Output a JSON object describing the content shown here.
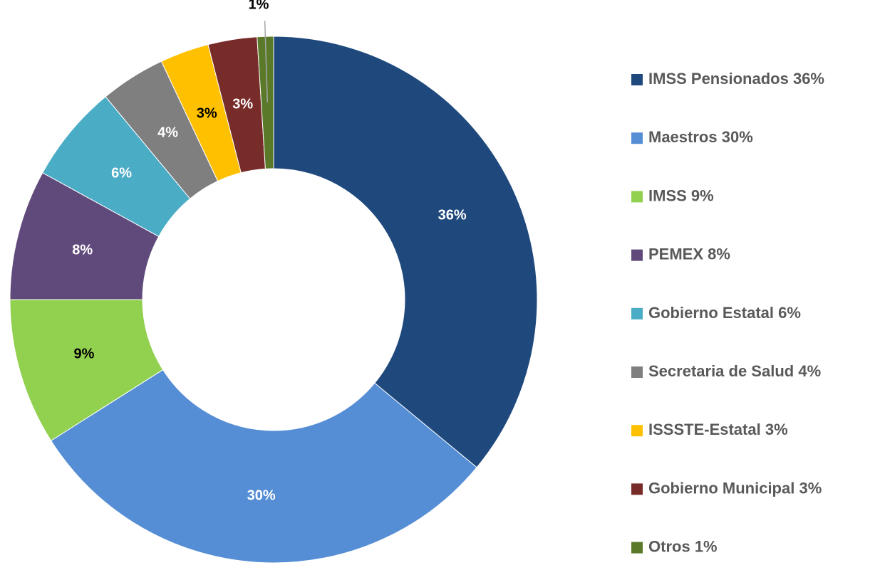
{
  "chart_data": {
    "type": "donut",
    "categories": [
      "IMSS Pensionados",
      "Maestros",
      "IMSS",
      "PEMEX",
      "Gobierno Estatal",
      "Secretaria de Salud",
      "ISSSTE-Estatal",
      "Gobierno Municipal",
      "Otros"
    ],
    "values": [
      36,
      30,
      9,
      8,
      6,
      4,
      3,
      3,
      1
    ],
    "value_labels": [
      "36%",
      "30%",
      "9%",
      "8%",
      "6%",
      "4%",
      "3%",
      "3%",
      "1%"
    ],
    "colors": [
      "#1f497d",
      "#558ed5",
      "#92d050",
      "#604a7b",
      "#4bacc6",
      "#7f7f7f",
      "#ffc000",
      "#772c2a",
      "#5a7a2a"
    ],
    "label_colors": [
      "#ffffff",
      "#ffffff",
      "#000000",
      "#ffffff",
      "#ffffff",
      "#ffffff",
      "#000000",
      "#ffffff",
      "#000000"
    ],
    "legend": "right"
  }
}
